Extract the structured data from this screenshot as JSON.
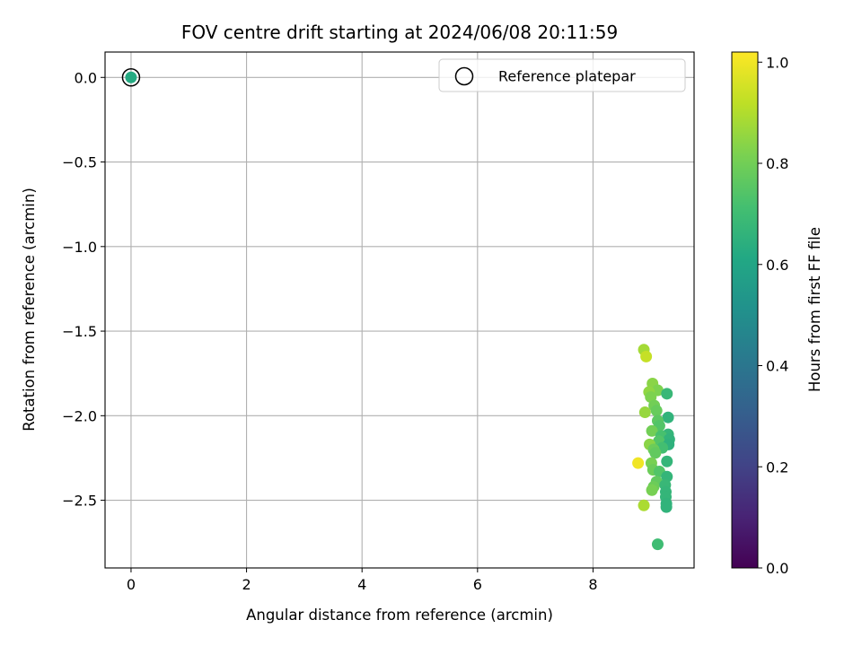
{
  "chart_data": {
    "type": "scatter",
    "title": "FOV centre drift starting at 2024/06/08 20:11:59",
    "xlabel": "Angular distance from reference (arcmin)",
    "ylabel": "Rotation from reference (arcmin)",
    "xlim": [
      -0.45,
      9.75
    ],
    "ylim": [
      -2.9,
      0.15
    ],
    "xticks": [
      0,
      2,
      4,
      6,
      8
    ],
    "xtick_labels": [
      "0",
      "2",
      "4",
      "6",
      "8"
    ],
    "yticks": [
      0.0,
      -0.5,
      -1.0,
      -1.5,
      -2.0,
      -2.5
    ],
    "ytick_labels": [
      "0.0",
      "−0.5",
      "−1.0",
      "−1.5",
      "−2.0",
      "−2.5"
    ],
    "grid": true,
    "legend": {
      "position": "upper right",
      "entries": [
        "Reference platepar"
      ]
    },
    "colorbar": {
      "label": "Hours from first FF file",
      "range": [
        0.0,
        1.02
      ],
      "ticks": [
        0.0,
        0.2,
        0.4,
        0.6,
        0.8,
        1.0
      ],
      "tick_labels": [
        "0.0",
        "0.2",
        "0.4",
        "0.6",
        "0.8",
        "1.0"
      ],
      "colormap": "viridis"
    },
    "reference_point": {
      "x": 0.0,
      "y": 0.0,
      "c": 0.62
    },
    "points": [
      {
        "x": 8.88,
        "y": -1.61,
        "c": 0.88
      },
      {
        "x": 8.92,
        "y": -1.65,
        "c": 0.93
      },
      {
        "x": 9.03,
        "y": -1.81,
        "c": 0.84
      },
      {
        "x": 9.12,
        "y": -1.85,
        "c": 0.82
      },
      {
        "x": 8.97,
        "y": -1.86,
        "c": 0.85
      },
      {
        "x": 9.0,
        "y": -1.89,
        "c": 0.82
      },
      {
        "x": 9.28,
        "y": -1.87,
        "c": 0.68
      },
      {
        "x": 9.06,
        "y": -1.94,
        "c": 0.8
      },
      {
        "x": 9.1,
        "y": -1.97,
        "c": 0.78
      },
      {
        "x": 8.9,
        "y": -1.98,
        "c": 0.86
      },
      {
        "x": 9.3,
        "y": -2.01,
        "c": 0.66
      },
      {
        "x": 9.12,
        "y": -2.03,
        "c": 0.76
      },
      {
        "x": 9.15,
        "y": -2.06,
        "c": 0.74
      },
      {
        "x": 9.02,
        "y": -2.09,
        "c": 0.8
      },
      {
        "x": 9.3,
        "y": -2.11,
        "c": 0.67
      },
      {
        "x": 9.18,
        "y": -2.12,
        "c": 0.72
      },
      {
        "x": 9.32,
        "y": -2.14,
        "c": 0.66
      },
      {
        "x": 9.14,
        "y": -2.15,
        "c": 0.74
      },
      {
        "x": 9.31,
        "y": -2.17,
        "c": 0.65
      },
      {
        "x": 8.98,
        "y": -2.17,
        "c": 0.84
      },
      {
        "x": 9.2,
        "y": -2.19,
        "c": 0.71
      },
      {
        "x": 9.05,
        "y": -2.2,
        "c": 0.79
      },
      {
        "x": 9.08,
        "y": -2.22,
        "c": 0.77
      },
      {
        "x": 9.28,
        "y": -2.27,
        "c": 0.67
      },
      {
        "x": 8.78,
        "y": -2.28,
        "c": 1.0
      },
      {
        "x": 9.01,
        "y": -2.28,
        "c": 0.81
      },
      {
        "x": 9.04,
        "y": -2.32,
        "c": 0.79
      },
      {
        "x": 9.15,
        "y": -2.33,
        "c": 0.74
      },
      {
        "x": 9.28,
        "y": -2.36,
        "c": 0.67
      },
      {
        "x": 9.1,
        "y": -2.39,
        "c": 0.77
      },
      {
        "x": 9.25,
        "y": -2.41,
        "c": 0.68
      },
      {
        "x": 9.05,
        "y": -2.42,
        "c": 0.79
      },
      {
        "x": 9.02,
        "y": -2.44,
        "c": 0.81
      },
      {
        "x": 9.26,
        "y": -2.45,
        "c": 0.67
      },
      {
        "x": 9.26,
        "y": -2.48,
        "c": 0.67
      },
      {
        "x": 9.27,
        "y": -2.52,
        "c": 0.66
      },
      {
        "x": 8.88,
        "y": -2.53,
        "c": 0.89
      },
      {
        "x": 9.27,
        "y": -2.54,
        "c": 0.66
      },
      {
        "x": 9.12,
        "y": -2.76,
        "c": 0.7
      }
    ]
  }
}
